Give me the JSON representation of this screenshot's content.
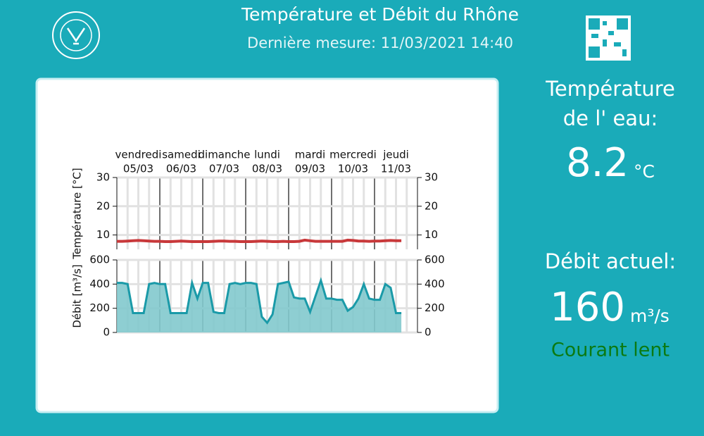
{
  "header": {
    "title": "Température et Débit du Rhône",
    "subtitle": "Dernière mesure: 11/03/2021 14:40"
  },
  "panel": {
    "temperature_label": [
      "Température",
      "de l' eau:"
    ],
    "temperature_value": "8.2",
    "temperature_unit": "°C",
    "flow_label": "Débit actuel:",
    "flow_value": "160",
    "flow_unit": "m³/s",
    "flow_status": "Courant lent"
  },
  "chart_data": [
    {
      "type": "line",
      "y_label": "Température [°C]",
      "day_names": [
        "vendredi",
        "samedi",
        "dimanche",
        "lundi",
        "mardi",
        "mercredi",
        "jeudi"
      ],
      "categories": [
        "05/03",
        "06/03",
        "07/03",
        "08/03",
        "09/03",
        "10/03",
        "11/03"
      ],
      "color": "#c8383a",
      "values": [
        [
          7.8,
          7.8,
          7.9,
          8.0,
          8.1,
          8.0,
          7.9,
          7.8
        ],
        [
          7.8,
          7.7,
          7.7,
          7.8,
          7.9,
          7.8,
          7.7,
          7.7
        ],
        [
          7.7,
          7.7,
          7.8,
          7.9,
          7.9,
          7.8,
          7.8,
          7.7
        ],
        [
          7.7,
          7.7,
          7.8,
          7.9,
          7.8,
          7.7,
          7.7,
          7.8
        ],
        [
          7.7,
          7.7,
          7.8,
          8.2,
          8.0,
          7.8,
          7.8,
          7.8
        ],
        [
          7.8,
          7.8,
          7.8,
          8.2,
          8.1,
          7.9,
          7.9,
          7.8
        ],
        [
          7.9,
          7.9,
          8.0,
          8.1,
          8.0,
          8.0
        ]
      ],
      "ylim": [
        5,
        30
      ],
      "yticks": [
        10,
        20,
        30
      ],
      "y2lim": [
        5,
        30
      ],
      "y2ticks": [
        10,
        20,
        30
      ],
      "grid": true
    },
    {
      "type": "area",
      "y_label": "Débit [m³/s]",
      "color": "#1a9aa8",
      "fill": "#82c9cd",
      "values": [
        [
          410,
          410,
          400,
          160,
          160,
          160,
          400,
          410
        ],
        [
          400,
          400,
          160,
          160,
          160,
          160,
          410,
          280
        ],
        [
          410,
          410,
          170,
          160,
          160,
          400,
          410,
          400
        ],
        [
          410,
          410,
          400,
          130,
          80,
          150,
          400,
          410
        ],
        [
          420,
          290,
          280,
          280,
          170,
          300,
          430,
          280
        ],
        [
          280,
          270,
          270,
          180,
          210,
          280,
          400,
          280
        ],
        [
          270,
          270,
          400,
          370,
          160,
          160
        ]
      ],
      "ylim": [
        0,
        600
      ],
      "yticks": [
        0,
        200,
        400,
        600
      ],
      "y2lim": [
        0,
        600
      ],
      "y2ticks": [
        0,
        200,
        400,
        600
      ],
      "grid": true
    }
  ]
}
